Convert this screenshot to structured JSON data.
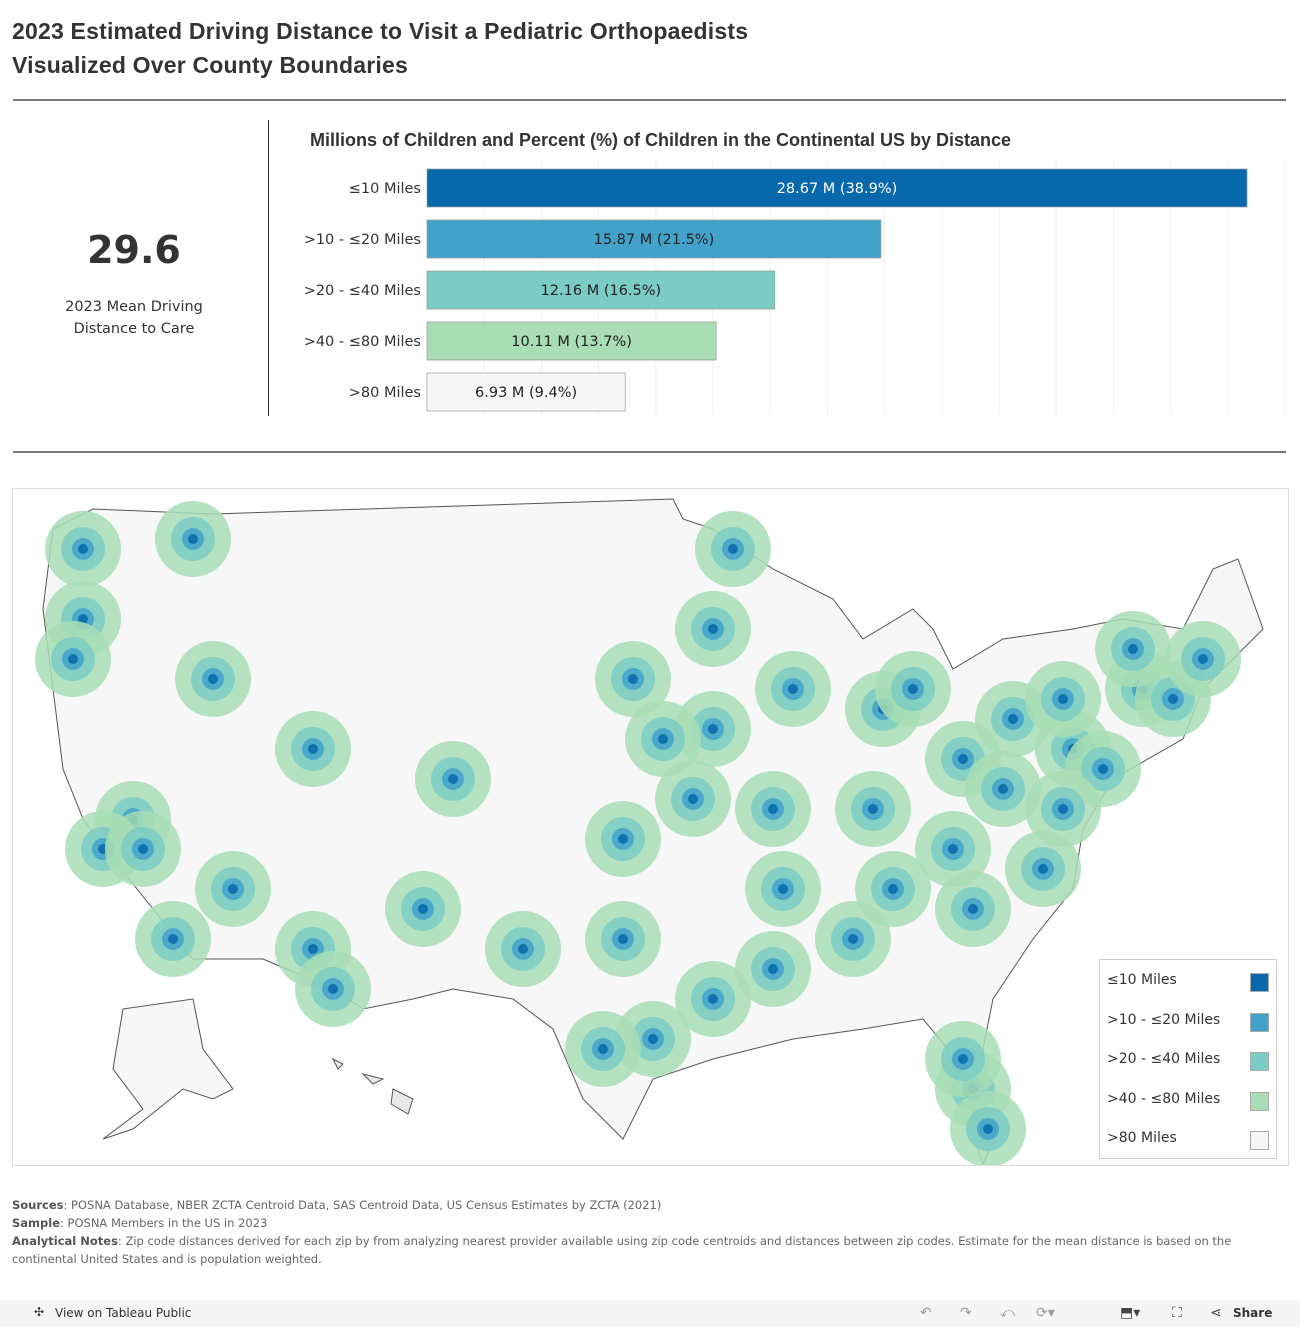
{
  "title_line1": "2023 Estimated Driving Distance to Visit a Pediatric Orthopaedists",
  "title_line2": "Visualized Over County Boundaries",
  "kpi": {
    "value": "29.6",
    "label_line1": "2023 Mean Driving",
    "label_line2": "Distance to Care"
  },
  "chart_data": {
    "type": "bar",
    "orientation": "horizontal",
    "title": "Millions of Children and Percent (%) of Children in the Continental US by Distance",
    "categories": [
      "≤10 Miles",
      ">10 - ≤20 Miles",
      ">20 - ≤40 Miles",
      ">40 - ≤80 Miles",
      ">80 Miles"
    ],
    "values": [
      28.67,
      15.87,
      12.16,
      10.11,
      6.93
    ],
    "percents": [
      38.9,
      21.5,
      16.5,
      13.7,
      9.4
    ],
    "data_labels": [
      "28.67 M (38.9%)",
      "15.87 M (21.5%)",
      "12.16 M (16.5%)",
      "10.11 M (13.7%)",
      "6.93 M (9.4%)"
    ],
    "colors": [
      "#0868ac",
      "#43a2ca",
      "#7bccc4",
      "#a8ddb5",
      "#f7f7f7"
    ],
    "label_colors": [
      "#ffffff",
      "#222222",
      "#222222",
      "#222222",
      "#222222"
    ],
    "xlim": [
      0,
      30
    ],
    "grid": true
  },
  "legend": {
    "items": [
      {
        "label": "≤10 Miles",
        "color": "#0868ac"
      },
      {
        "label": ">10 - ≤20 Miles",
        "color": "#43a2ca"
      },
      {
        "label": ">20 - ≤40 Miles",
        "color": "#7bccc4"
      },
      {
        "label": ">40 - ≤80 Miles",
        "color": "#a8ddb5"
      },
      {
        "label": ">80 Miles",
        "color": "#f7f7f7"
      }
    ]
  },
  "notes": {
    "sources_label": "Sources",
    "sources": ": POSNA Database, NBER ZCTA Centroid Data, SAS Centroid Data, US Census Estimates by ZCTA (2021)",
    "sample_label": "Sample",
    "sample": ": POSNA Members in the US in 2023",
    "analytical_label": "Analytical Notes",
    "analytical": ":  Zip code distances derived for each zip by from analyzing nearest provider available using zip code centroids and distances between zip codes.  Estimate for the mean distance is based on the continental United States and is population weighted."
  },
  "footer": {
    "view_label": "View on Tableau Public",
    "share_label": "Share"
  }
}
